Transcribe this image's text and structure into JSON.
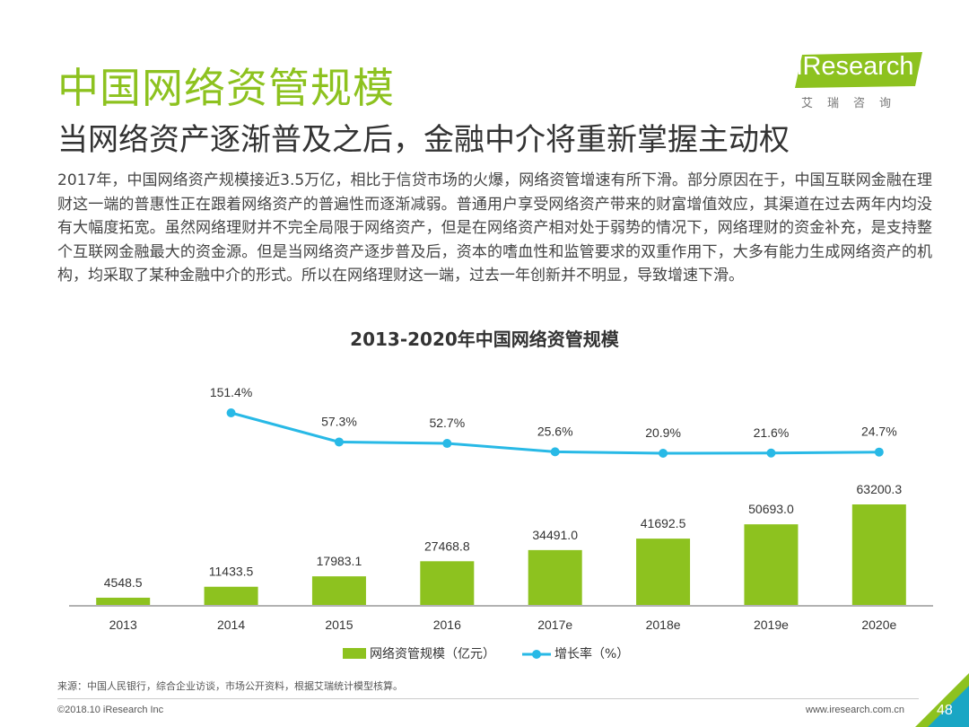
{
  "header": {
    "title": "中国网络资管规模",
    "subtitle": "当网络资产逐渐普及之后，金融中介将重新掌握主动权",
    "logo_text": "iResearch",
    "logo_cn": "艾瑞咨询"
  },
  "body_text": "2017年，中国网络资产规模接近3.5万亿，相比于信贷市场的火爆，网络资管增速有所下滑。部分原因在于，中国互联网金融在理财这一端的普惠性正在跟着网络资产的普遍性而逐渐减弱。普通用户享受网络资产带来的财富增值效应，其渠道在过去两年内均没有大幅度拓宽。虽然网络理财并不完全局限于网络资产，但是在网络资产相对处于弱势的情况下，网络理财的资金补充，是支持整个互联网金融最大的资金源。但是当网络资产逐步普及后，资本的嗜血性和监管要求的双重作用下，大多有能力生成网络资产的机构，均采取了某种金融中介的形式。所以在网络理财这一端，过去一年创新并不明显，导致增速下滑。",
  "chart_data": {
    "type": "bar",
    "title": "2013-2020年中国网络资管规模",
    "categories": [
      "2013",
      "2014",
      "2015",
      "2016",
      "2017e",
      "2018e",
      "2019e",
      "2020e"
    ],
    "series": [
      {
        "name": "网络资管规模（亿元）",
        "type": "bar",
        "values": [
          4548.5,
          11433.5,
          17983.1,
          27468.8,
          34491.0,
          41692.5,
          50693.0,
          63200.3
        ],
        "labels": [
          "4548.5",
          "11433.5",
          "17983.1",
          "27468.8",
          "34491.0",
          "41692.5",
          "50693.0",
          "63200.3"
        ],
        "color": "#8dc21f"
      },
      {
        "name": "增长率（%）",
        "type": "line",
        "values": [
          null,
          151.4,
          57.3,
          52.7,
          25.6,
          20.9,
          21.6,
          24.7
        ],
        "labels": [
          "",
          "151.4%",
          "57.3%",
          "52.7%",
          "25.6%",
          "20.9%",
          "21.6%",
          "24.7%"
        ],
        "color": "#28b9e6"
      }
    ],
    "legend_position": "bottom",
    "grid": false
  },
  "footer": {
    "source": "来源：中国人民银行，综合企业访谈，市场公开资料，根据艾瑞统计模型核算。",
    "copyright": "©2018.10 iResearch Inc",
    "website": "www.iresearch.com.cn",
    "page_number": "48"
  },
  "colors": {
    "accent": "#8dc21f",
    "line": "#28b9e6",
    "corner": "#1aa6c4"
  }
}
